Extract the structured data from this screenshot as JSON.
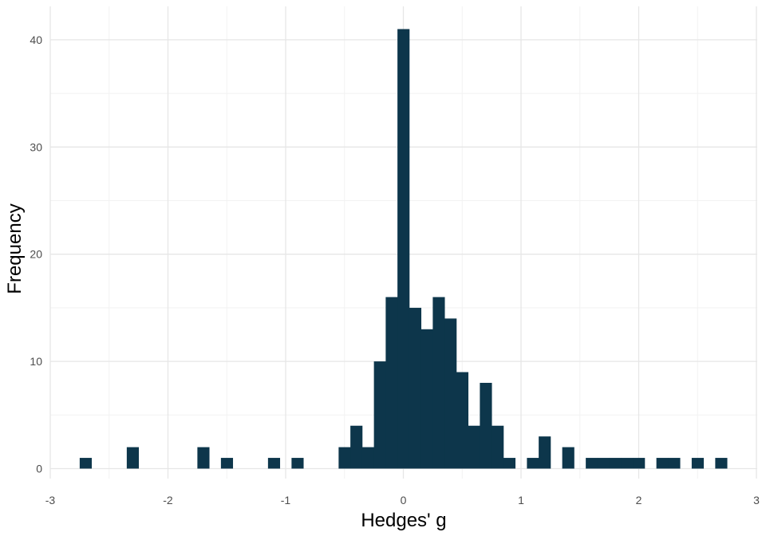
{
  "chart_data": {
    "type": "bar",
    "title": "",
    "xlabel": "Hedges' g",
    "ylabel": "Frequency",
    "xlim": [
      -3,
      3
    ],
    "ylim": [
      0,
      42
    ],
    "bin_width": 0.1,
    "x_ticks": [
      -3,
      -2,
      -1,
      0,
      1,
      2,
      3
    ],
    "x_tick_labels": [
      "-3",
      "-2",
      "-1",
      "0",
      "1",
      "2",
      "3"
    ],
    "y_ticks": [
      0,
      10,
      20,
      30,
      40
    ],
    "y_tick_labels": [
      "0",
      "10",
      "20",
      "30",
      "40"
    ],
    "grid": true,
    "legend": "none",
    "bar_color": "#0d364b",
    "x": [
      -2.7,
      -2.3,
      -1.7,
      -1.5,
      -1.1,
      -0.9,
      -0.5,
      -0.4,
      -0.3,
      -0.2,
      -0.1,
      0.0,
      0.1,
      0.2,
      0.3,
      0.4,
      0.5,
      0.6,
      0.7,
      0.8,
      0.9,
      1.1,
      1.2,
      1.4,
      1.6,
      1.7,
      1.8,
      1.9,
      2.0,
      2.2,
      2.3,
      2.5,
      2.7
    ],
    "values": [
      1,
      2,
      2,
      1,
      1,
      1,
      2,
      4,
      2,
      10,
      16,
      41,
      15,
      13,
      16,
      14,
      9,
      4,
      8,
      4,
      1,
      1,
      3,
      2,
      1,
      1,
      1,
      1,
      1,
      1,
      1,
      1,
      1
    ]
  }
}
